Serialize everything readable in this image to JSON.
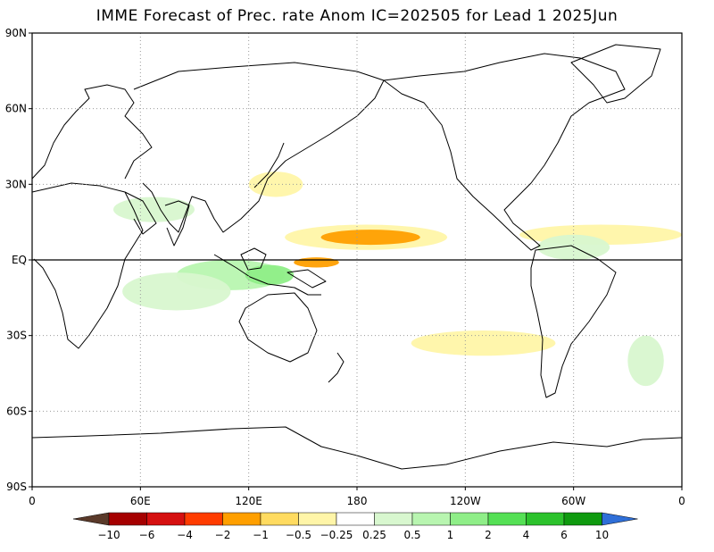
{
  "title": "IMME Forecast of Prec. rate Anom IC=202505 for Lead 1 2025Jun",
  "lat_labels": [
    "90N",
    "60N",
    "30N",
    "EQ",
    "30S",
    "60S",
    "90S"
  ],
  "lat_values": [
    90,
    60,
    30,
    0,
    -30,
    -60,
    -90
  ],
  "lon_labels": [
    "0",
    "60E",
    "120E",
    "180",
    "120W",
    "60W",
    "0"
  ],
  "lon_values": [
    0,
    60,
    120,
    180,
    240,
    300,
    360
  ],
  "colorbar": {
    "labels": [
      "-10",
      "-6",
      "-4",
      "-2",
      "-1",
      "-0.5",
      "-0.25",
      "0.25",
      "0.5",
      "1",
      "2",
      "4",
      "6",
      "10"
    ],
    "colors": [
      "#5a3a2a",
      "#a50000",
      "#d51010",
      "#ff3c00",
      "#ff9f00",
      "#ffdb60",
      "#fff5a8",
      "#ffffff",
      "#d8f7cf",
      "#b8f5b0",
      "#8fee88",
      "#55e055",
      "#2cc22c",
      "#0f9a0f",
      "#2f6fd8"
    ]
  },
  "anomaly_regions": [
    {
      "sign": "negative",
      "level": -0.5,
      "lon": [
        140,
        230
      ],
      "lat": [
        4,
        14
      ]
    },
    {
      "sign": "negative",
      "level": -2,
      "lon": [
        160,
        215
      ],
      "lat": [
        6,
        12
      ]
    },
    {
      "sign": "negative",
      "level": -2,
      "lon": [
        145,
        170
      ],
      "lat": [
        -3,
        1
      ]
    },
    {
      "sign": "negative",
      "level": -0.5,
      "lon": [
        270,
        360
      ],
      "lat": [
        6,
        14
      ]
    },
    {
      "sign": "negative",
      "level": -0.5,
      "lon": [
        210,
        290
      ],
      "lat": [
        -38,
        -28
      ]
    },
    {
      "sign": "negative",
      "level": -0.5,
      "lon": [
        120,
        150
      ],
      "lat": [
        25,
        35
      ]
    },
    {
      "sign": "positive",
      "level": 1,
      "lon": [
        80,
        140
      ],
      "lat": [
        -12,
        0
      ]
    },
    {
      "sign": "positive",
      "level": 2,
      "lon": [
        118,
        145
      ],
      "lat": [
        -10,
        -2
      ]
    },
    {
      "sign": "positive",
      "level": 0.5,
      "lon": [
        50,
        110
      ],
      "lat": [
        -20,
        -5
      ]
    },
    {
      "sign": "positive",
      "level": 0.5,
      "lon": [
        45,
        90
      ],
      "lat": [
        15,
        25
      ]
    },
    {
      "sign": "positive",
      "level": 0.5,
      "lon": [
        280,
        320
      ],
      "lat": [
        0,
        10
      ]
    },
    {
      "sign": "positive",
      "level": 0.5,
      "lon": [
        330,
        350
      ],
      "lat": [
        -50,
        -30
      ]
    }
  ]
}
